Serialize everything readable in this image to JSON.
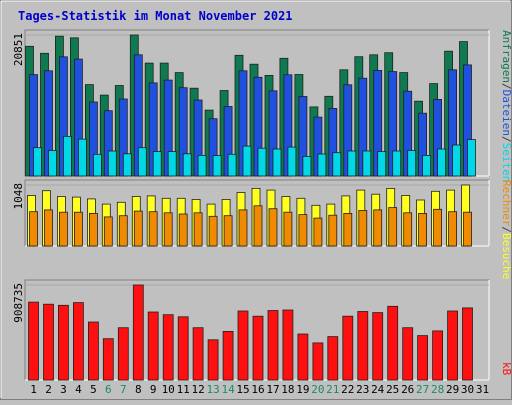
{
  "title": "Tages-Statistik im Monat November 2021",
  "colors": {
    "background": "#C0C0C0",
    "title": "#0000CC",
    "anfragen": "#0F7A4F",
    "dateien": "#2050E0",
    "seiten": "#00D8E8",
    "besuche": "#FFFF20",
    "rechner": "#F08A00",
    "kb": "#FF1010",
    "weekend_label": "#1D8A66"
  },
  "chart_data": [
    {
      "type": "bar",
      "panel": "requests",
      "ymax_label": "20851",
      "legend": [
        {
          "text": "Anfragen",
          "color": "#0F7A4F"
        },
        {
          "text": "/",
          "color": "#404040"
        },
        {
          "text": "Dateien",
          "color": "#2050E0"
        },
        {
          "text": "/",
          "color": "#404040"
        },
        {
          "text": "Seiten",
          "color": "#00D8E8"
        }
      ],
      "ylim": [
        0,
        20851
      ],
      "categories": [
        "1",
        "2",
        "3",
        "4",
        "5",
        "6",
        "7",
        "8",
        "9",
        "10",
        "11",
        "12",
        "13",
        "14",
        "15",
        "16",
        "17",
        "18",
        "19",
        "20",
        "21",
        "22",
        "23",
        "24",
        "25",
        "26",
        "27",
        "28",
        "29",
        "30",
        "31"
      ],
      "series": [
        {
          "name": "Anfragen",
          "values": [
            19180,
            18150,
            20670,
            20440,
            13520,
            11960,
            13380,
            20851,
            16690,
            16690,
            15290,
            12980,
            9740,
            12640,
            17850,
            16530,
            14880,
            17400,
            15010,
            10220,
            11780,
            15710,
            17640,
            17930,
            18240,
            15290,
            11060,
            13670,
            18450,
            19870,
            0
          ]
        },
        {
          "name": "Dateien",
          "values": [
            15000,
            15560,
            17630,
            17280,
            10940,
            9650,
            11380,
            17930,
            13770,
            14180,
            13060,
            11240,
            8480,
            10280,
            15560,
            14600,
            12600,
            14970,
            11760,
            8710,
            10000,
            13480,
            14470,
            15620,
            15440,
            12540,
            9290,
            11330,
            15710,
            16430,
            0
          ]
        },
        {
          "name": "Seiten",
          "values": [
            4180,
            3770,
            5850,
            5450,
            3210,
            3690,
            3290,
            4180,
            3610,
            3610,
            3290,
            3050,
            3010,
            3210,
            4420,
            4110,
            4000,
            4280,
            2890,
            3250,
            3450,
            3690,
            3690,
            3610,
            3690,
            3770,
            3050,
            4000,
            4580,
            5380,
            0
          ]
        }
      ]
    },
    {
      "type": "bar",
      "panel": "visits",
      "ymax_label": "1048",
      "legend": [
        {
          "text": "Rechner",
          "color": "#F08A00"
        },
        {
          "text": "/",
          "color": "#404040"
        },
        {
          "text": "Besuche",
          "color": "#FFFF20"
        }
      ],
      "ylim": [
        0,
        1048
      ],
      "categories": [
        "1",
        "2",
        "3",
        "4",
        "5",
        "6",
        "7",
        "8",
        "9",
        "10",
        "11",
        "12",
        "13",
        "14",
        "15",
        "16",
        "17",
        "18",
        "19",
        "20",
        "21",
        "22",
        "23",
        "24",
        "25",
        "26",
        "27",
        "28",
        "29",
        "30",
        "31"
      ],
      "series": [
        {
          "name": "Besuche",
          "values": [
            870,
            950,
            850,
            840,
            810,
            720,
            750,
            850,
            860,
            820,
            820,
            800,
            720,
            800,
            920,
            990,
            960,
            850,
            820,
            700,
            720,
            860,
            960,
            890,
            990,
            870,
            790,
            940,
            960,
            1048,
            0
          ]
        },
        {
          "name": "Rechner",
          "values": [
            590,
            620,
            580,
            580,
            560,
            500,
            520,
            600,
            590,
            570,
            550,
            570,
            510,
            520,
            620,
            690,
            640,
            580,
            540,
            480,
            530,
            560,
            610,
            620,
            660,
            570,
            560,
            630,
            590,
            580,
            0
          ]
        }
      ]
    },
    {
      "type": "bar",
      "panel": "kb",
      "ymax_label": "908735",
      "legend": [
        {
          "text": "kB",
          "color": "#FF1010"
        }
      ],
      "ylim": [
        0,
        908735
      ],
      "categories": [
        "1",
        "2",
        "3",
        "4",
        "5",
        "6",
        "7",
        "8",
        "9",
        "10",
        "11",
        "12",
        "13",
        "14",
        "15",
        "16",
        "17",
        "18",
        "19",
        "20",
        "21",
        "22",
        "23",
        "24",
        "25",
        "26",
        "27",
        "28",
        "29",
        "30",
        "31"
      ],
      "series": [
        {
          "name": "kB",
          "values": [
            745000,
            725000,
            715000,
            740000,
            555000,
            395000,
            500000,
            908735,
            650000,
            625000,
            605000,
            500000,
            385000,
            465000,
            660000,
            610000,
            665000,
            670000,
            440000,
            355000,
            415000,
            610000,
            655000,
            645000,
            705000,
            500000,
            425000,
            470000,
            660000,
            690000,
            0
          ]
        }
      ]
    }
  ],
  "weekend_days": [
    "6",
    "7",
    "13",
    "14",
    "20",
    "21",
    "27",
    "28"
  ]
}
